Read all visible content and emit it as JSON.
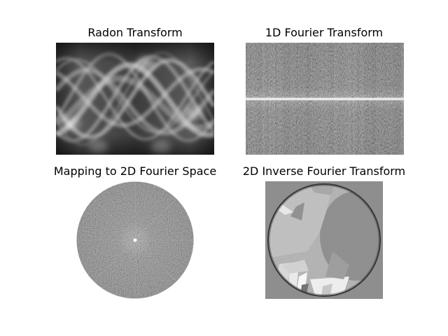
{
  "figure": {
    "panels": [
      {
        "title": "Radon Transform",
        "kind": "sinogram"
      },
      {
        "title": "1D Fourier Transform",
        "kind": "fourier-1d"
      },
      {
        "title": "Mapping to 2D Fourier Space",
        "kind": "fourier-2d-disk"
      },
      {
        "title": "2D Inverse Fourier Transform",
        "kind": "reconstruction"
      }
    ]
  },
  "chart_data": [
    {
      "type": "heatmap",
      "title": "Radon Transform",
      "colormap": "gray",
      "axes_visible": false
    },
    {
      "type": "heatmap",
      "title": "1D Fourier Transform",
      "colormap": "gray",
      "axes_visible": false
    },
    {
      "type": "heatmap",
      "title": "Mapping to 2D Fourier Space",
      "colormap": "gray",
      "axes_visible": false
    },
    {
      "type": "heatmap",
      "title": "2D Inverse Fourier Transform",
      "colormap": "gray",
      "axes_visible": false
    }
  ]
}
